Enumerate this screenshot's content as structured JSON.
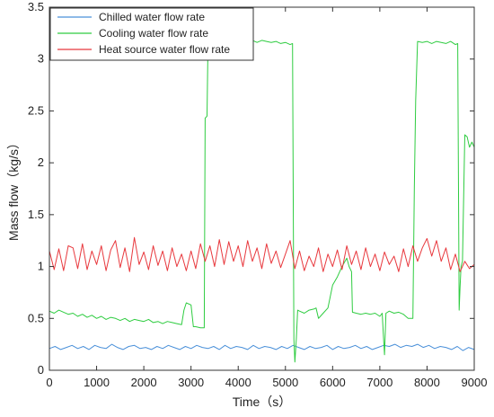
{
  "chart_data": {
    "type": "line",
    "xlabel": "Time（s）",
    "ylabel": "Mass flow（kg/s）",
    "xlim": [
      0,
      9000
    ],
    "ylim": [
      0,
      3.5
    ],
    "xticks": [
      "0",
      "1000",
      "2000",
      "3000",
      "4000",
      "5000",
      "6000",
      "7000",
      "8000",
      "9000"
    ],
    "yticks": [
      "0",
      "0.5",
      "1",
      "1.5",
      "2",
      "2.5",
      "3",
      "3.5"
    ],
    "grid": false,
    "legend_position": "top-left",
    "series": [
      {
        "name": "Chilled water flow rate",
        "color": "#4a90d9",
        "x": [
          0,
          120,
          240,
          360,
          480,
          600,
          720,
          840,
          960,
          1080,
          1200,
          1320,
          1440,
          1560,
          1680,
          1800,
          1920,
          2040,
          2160,
          2280,
          2400,
          2520,
          2640,
          2760,
          2880,
          3000,
          3120,
          3240,
          3360,
          3480,
          3600,
          3720,
          3840,
          3960,
          4080,
          4200,
          4320,
          4440,
          4560,
          4680,
          4800,
          4920,
          5040,
          5160,
          5280,
          5400,
          5520,
          5640,
          5760,
          5880,
          6000,
          6120,
          6240,
          6360,
          6480,
          6600,
          6720,
          6840,
          6960,
          7080,
          7200,
          7320,
          7440,
          7560,
          7680,
          7800,
          7920,
          8040,
          8160,
          8280,
          8400,
          8520,
          8640,
          8760,
          8880,
          9000
        ],
        "y": [
          0.21,
          0.23,
          0.2,
          0.22,
          0.24,
          0.21,
          0.23,
          0.2,
          0.24,
          0.22,
          0.21,
          0.25,
          0.22,
          0.2,
          0.23,
          0.24,
          0.21,
          0.22,
          0.2,
          0.23,
          0.21,
          0.24,
          0.22,
          0.2,
          0.23,
          0.21,
          0.24,
          0.22,
          0.21,
          0.23,
          0.2,
          0.24,
          0.21,
          0.23,
          0.22,
          0.2,
          0.24,
          0.21,
          0.23,
          0.22,
          0.2,
          0.23,
          0.21,
          0.24,
          0.22,
          0.2,
          0.23,
          0.21,
          0.22,
          0.24,
          0.2,
          0.23,
          0.21,
          0.22,
          0.24,
          0.21,
          0.23,
          0.2,
          0.22,
          0.24,
          0.23,
          0.25,
          0.22,
          0.24,
          0.23,
          0.25,
          0.22,
          0.24,
          0.21,
          0.23,
          0.22,
          0.2,
          0.23,
          0.19,
          0.22,
          0.2
        ]
      },
      {
        "name": "Cooling water flow rate",
        "color": "#2ecc40",
        "x": [
          0,
          100,
          200,
          300,
          400,
          500,
          600,
          700,
          800,
          900,
          1000,
          1100,
          1200,
          1300,
          1400,
          1500,
          1600,
          1700,
          1800,
          1900,
          2000,
          2100,
          2200,
          2300,
          2400,
          2500,
          2600,
          2700,
          2800,
          2850,
          2900,
          3000,
          3050,
          3100,
          3200,
          3280,
          3300,
          3340,
          3360,
          3400,
          3500,
          3600,
          3700,
          3800,
          3900,
          4000,
          4100,
          4200,
          4300,
          4400,
          4500,
          4600,
          4700,
          4800,
          4900,
          5000,
          5100,
          5150,
          5180,
          5200,
          5230,
          5260,
          5300,
          5400,
          5500,
          5600,
          5650,
          5700,
          5800,
          5900,
          6000,
          6100,
          6200,
          6300,
          6350,
          6400,
          6420,
          6500,
          6600,
          6700,
          6800,
          6900,
          7000,
          7050,
          7080,
          7100,
          7130,
          7200,
          7300,
          7400,
          7500,
          7600,
          7700,
          7730,
          7760,
          7800,
          7900,
          8000,
          8100,
          8200,
          8300,
          8400,
          8500,
          8600,
          8650,
          8680,
          8700,
          8720,
          8750,
          8800,
          8850,
          8900,
          8950,
          9000
        ],
        "y": [
          0.57,
          0.55,
          0.58,
          0.56,
          0.54,
          0.55,
          0.52,
          0.54,
          0.51,
          0.53,
          0.5,
          0.52,
          0.49,
          0.51,
          0.5,
          0.48,
          0.5,
          0.47,
          0.49,
          0.48,
          0.47,
          0.49,
          0.46,
          0.47,
          0.45,
          0.47,
          0.46,
          0.45,
          0.44,
          0.58,
          0.65,
          0.63,
          0.42,
          0.42,
          0.41,
          0.41,
          2.43,
          2.45,
          3.17,
          3.19,
          3.18,
          3.17,
          3.19,
          3.17,
          3.18,
          3.16,
          3.19,
          3.17,
          3.18,
          3.16,
          3.18,
          3.17,
          3.16,
          3.17,
          3.15,
          3.16,
          3.14,
          3.15,
          0.3,
          0.08,
          0.3,
          0.58,
          0.57,
          0.55,
          0.58,
          0.59,
          0.6,
          0.5,
          0.55,
          0.6,
          0.82,
          0.9,
          1.0,
          1.08,
          1.0,
          0.95,
          0.56,
          0.55,
          0.54,
          0.55,
          0.54,
          0.55,
          0.52,
          0.55,
          0.3,
          0.15,
          0.55,
          0.57,
          0.55,
          0.56,
          0.54,
          0.5,
          0.5,
          1.75,
          2.6,
          3.17,
          3.16,
          3.17,
          3.15,
          3.17,
          3.16,
          3.15,
          3.17,
          3.14,
          3.15,
          0.58,
          0.8,
          1.0,
          1.05,
          2.27,
          2.25,
          2.15,
          2.2,
          2.15
        ]
      },
      {
        "name": "Heat source water flow rate",
        "color": "#e8383d",
        "x": [
          0,
          100,
          200,
          300,
          400,
          500,
          600,
          700,
          800,
          900,
          1000,
          1100,
          1200,
          1300,
          1400,
          1500,
          1600,
          1700,
          1800,
          1900,
          2000,
          2100,
          2200,
          2300,
          2400,
          2500,
          2600,
          2700,
          2800,
          2900,
          3000,
          3100,
          3200,
          3300,
          3400,
          3500,
          3600,
          3700,
          3800,
          3900,
          4000,
          4100,
          4200,
          4300,
          4400,
          4500,
          4600,
          4700,
          4800,
          4900,
          5000,
          5100,
          5200,
          5300,
          5400,
          5500,
          5600,
          5700,
          5800,
          5900,
          6000,
          6100,
          6200,
          6300,
          6400,
          6500,
          6600,
          6700,
          6800,
          6900,
          7000,
          7100,
          7200,
          7300,
          7400,
          7500,
          7600,
          7700,
          7800,
          7900,
          8000,
          8100,
          8200,
          8300,
          8400,
          8500,
          8600,
          8700,
          8800,
          8900,
          9000
        ],
        "y": [
          1.15,
          0.97,
          1.17,
          0.96,
          1.2,
          1.18,
          0.98,
          1.22,
          0.97,
          1.15,
          1.02,
          1.2,
          0.96,
          1.16,
          1.25,
          0.99,
          1.18,
          0.95,
          1.28,
          1.02,
          1.14,
          0.97,
          1.2,
          1.01,
          1.15,
          0.96,
          1.18,
          1.0,
          1.12,
          0.96,
          1.15,
          0.98,
          1.22,
          1.05,
          1.2,
          1.0,
          1.26,
          1.02,
          1.24,
          1.05,
          1.2,
          1.0,
          1.25,
          1.05,
          1.18,
          0.98,
          1.22,
          1.03,
          1.15,
          0.99,
          1.12,
          1.25,
          0.98,
          1.15,
          0.96,
          1.1,
          1.0,
          1.18,
          0.95,
          1.12,
          1.0,
          1.16,
          0.97,
          1.2,
          1.02,
          1.15,
          0.97,
          1.18,
          1.0,
          1.12,
          0.96,
          1.14,
          1.02,
          1.1,
          0.95,
          1.17,
          1.0,
          1.2,
          1.05,
          1.18,
          1.27,
          1.1,
          1.25,
          1.05,
          1.18,
          0.97,
          1.12,
          0.95,
          1.05,
          0.98,
          1.02
        ]
      }
    ]
  }
}
